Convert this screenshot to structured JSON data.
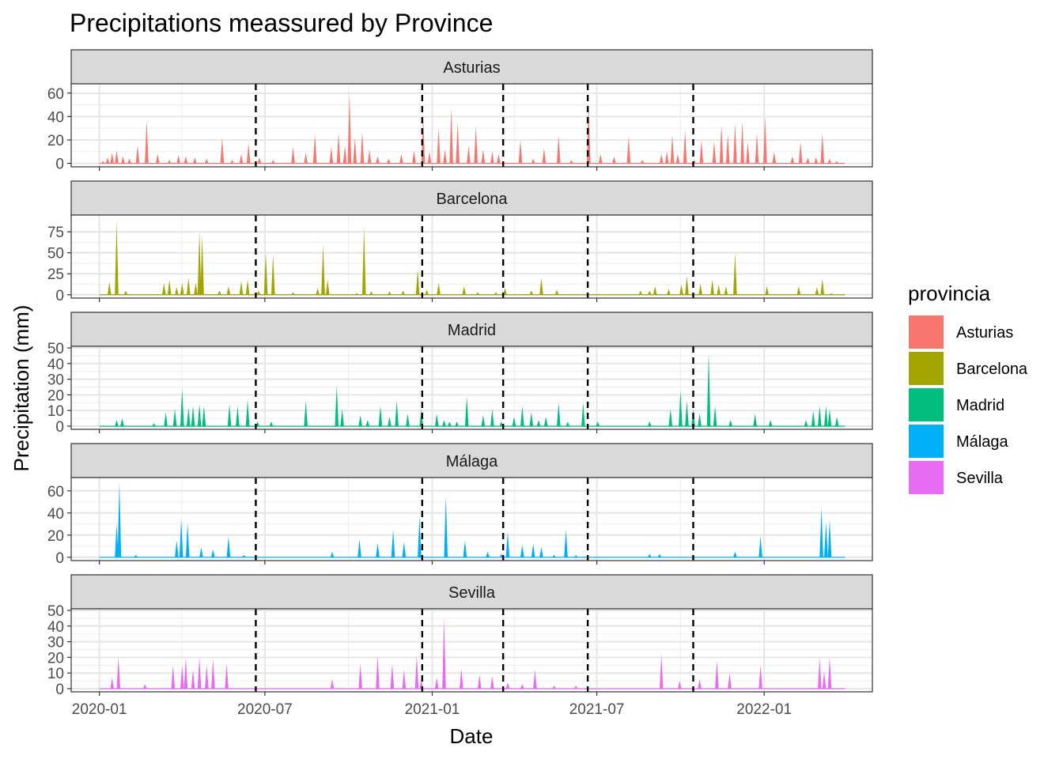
{
  "chart_data": {
    "type": "area",
    "title": "Precipitations meassured by Province",
    "xlabel": "Date",
    "ylabel": "Precipitation (mm)",
    "facet_by": "provincia",
    "x_range": [
      "2019-12-01",
      "2022-04-30"
    ],
    "x_ticks": [
      "2020-01-01",
      "2020-07-01",
      "2021-01-01",
      "2021-07-01",
      "2022-01-01"
    ],
    "x_tick_labels": [
      "2020-01",
      "2020-07",
      "2021-01",
      "2021-07",
      "2022-01"
    ],
    "vertical_lines": [
      "2020-06-21",
      "2020-12-21",
      "2021-03-20",
      "2021-06-21",
      "2021-10-15"
    ],
    "grid": true,
    "legend": {
      "title": "provincia",
      "placement": "right",
      "entries": [
        {
          "label": "Asturias",
          "color": "#F8766D"
        },
        {
          "label": "Barcelona",
          "color": "#A3A500"
        },
        {
          "label": "Madrid",
          "color": "#00BF7D"
        },
        {
          "label": "Málaga",
          "color": "#00B0F6"
        },
        {
          "label": "Sevilla",
          "color": "#E76BF3"
        }
      ]
    },
    "series": [
      {
        "name": "Asturias",
        "color": "#F8766D",
        "ylim": [
          -3,
          68
        ],
        "yticks": [
          0,
          20,
          40,
          60
        ],
        "peaks": [
          [
            "2020-01-05",
            2
          ],
          [
            "2020-01-10",
            5
          ],
          [
            "2020-01-15",
            9
          ],
          [
            "2020-01-20",
            11
          ],
          [
            "2020-01-27",
            6
          ],
          [
            "2020-02-03",
            4
          ],
          [
            "2020-02-12",
            15
          ],
          [
            "2020-02-22",
            37
          ],
          [
            "2020-03-05",
            8
          ],
          [
            "2020-03-18",
            3
          ],
          [
            "2020-03-28",
            7
          ],
          [
            "2020-04-05",
            6
          ],
          [
            "2020-04-15",
            5
          ],
          [
            "2020-04-28",
            4
          ],
          [
            "2020-05-15",
            22
          ],
          [
            "2020-05-26",
            3
          ],
          [
            "2020-06-05",
            8
          ],
          [
            "2020-06-13",
            17
          ],
          [
            "2020-06-25",
            5
          ],
          [
            "2020-07-10",
            3
          ],
          [
            "2020-08-01",
            14
          ],
          [
            "2020-08-15",
            9
          ],
          [
            "2020-08-25",
            25
          ],
          [
            "2020-09-12",
            14
          ],
          [
            "2020-09-20",
            26
          ],
          [
            "2020-09-27",
            15
          ],
          [
            "2020-10-02",
            60
          ],
          [
            "2020-10-08",
            22
          ],
          [
            "2020-10-16",
            27
          ],
          [
            "2020-10-24",
            12
          ],
          [
            "2020-11-02",
            6
          ],
          [
            "2020-11-14",
            4
          ],
          [
            "2020-11-28",
            8
          ],
          [
            "2020-12-12",
            11
          ],
          [
            "2020-12-22",
            40
          ],
          [
            "2020-12-29",
            10
          ],
          [
            "2021-01-08",
            30
          ],
          [
            "2021-01-15",
            12
          ],
          [
            "2021-01-22",
            47
          ],
          [
            "2021-01-29",
            35
          ],
          [
            "2021-02-10",
            15
          ],
          [
            "2021-02-18",
            32
          ],
          [
            "2021-02-26",
            12
          ],
          [
            "2021-03-08",
            10
          ],
          [
            "2021-03-15",
            8
          ],
          [
            "2021-04-08",
            20
          ],
          [
            "2021-04-22",
            4
          ],
          [
            "2021-05-04",
            13
          ],
          [
            "2021-05-20",
            24
          ],
          [
            "2021-06-03",
            3
          ],
          [
            "2021-06-22",
            51
          ],
          [
            "2021-07-05",
            8
          ],
          [
            "2021-07-20",
            6
          ],
          [
            "2021-08-05",
            23
          ],
          [
            "2021-08-20",
            3
          ],
          [
            "2021-09-10",
            8
          ],
          [
            "2021-09-16",
            10
          ],
          [
            "2021-09-22",
            24
          ],
          [
            "2021-09-28",
            8
          ],
          [
            "2021-10-06",
            28
          ],
          [
            "2021-10-16",
            3
          ],
          [
            "2021-10-24",
            20
          ],
          [
            "2021-11-07",
            19
          ],
          [
            "2021-11-15",
            33
          ],
          [
            "2021-11-22",
            25
          ],
          [
            "2021-11-30",
            34
          ],
          [
            "2021-12-08",
            36
          ],
          [
            "2021-12-14",
            18
          ],
          [
            "2021-12-24",
            26
          ],
          [
            "2022-01-02",
            40
          ],
          [
            "2022-01-12",
            10
          ],
          [
            "2022-02-01",
            6
          ],
          [
            "2022-02-10",
            18
          ],
          [
            "2022-02-18",
            5
          ],
          [
            "2022-02-27",
            5
          ],
          [
            "2022-03-06",
            26
          ],
          [
            "2022-03-14",
            4
          ],
          [
            "2022-03-22",
            2
          ]
        ]
      },
      {
        "name": "Barcelona",
        "color": "#A3A500",
        "ylim": [
          -4,
          95
        ],
        "yticks": [
          0,
          25,
          50,
          75
        ],
        "peaks": [
          [
            "2020-01-12",
            15
          ],
          [
            "2020-01-20",
            87
          ],
          [
            "2020-01-30",
            5
          ],
          [
            "2020-03-12",
            14
          ],
          [
            "2020-03-18",
            18
          ],
          [
            "2020-03-26",
            9
          ],
          [
            "2020-04-01",
            14
          ],
          [
            "2020-04-08",
            20
          ],
          [
            "2020-04-16",
            14
          ],
          [
            "2020-04-20",
            76
          ],
          [
            "2020-04-23",
            70
          ],
          [
            "2020-05-12",
            5
          ],
          [
            "2020-05-22",
            10
          ],
          [
            "2020-06-05",
            16
          ],
          [
            "2020-06-12",
            18
          ],
          [
            "2020-06-24",
            5
          ],
          [
            "2020-07-02",
            50
          ],
          [
            "2020-07-10",
            48
          ],
          [
            "2020-08-01",
            3
          ],
          [
            "2020-08-28",
            8
          ],
          [
            "2020-09-03",
            60
          ],
          [
            "2020-09-08",
            18
          ],
          [
            "2020-10-10",
            2
          ],
          [
            "2020-10-18",
            80
          ],
          [
            "2020-10-26",
            4
          ],
          [
            "2020-11-15",
            4
          ],
          [
            "2020-11-30",
            5
          ],
          [
            "2020-12-16",
            30
          ],
          [
            "2020-12-26",
            6
          ],
          [
            "2021-01-08",
            14
          ],
          [
            "2021-02-05",
            10
          ],
          [
            "2021-02-20",
            3
          ],
          [
            "2021-03-12",
            3
          ],
          [
            "2021-03-22",
            8
          ],
          [
            "2021-04-20",
            5
          ],
          [
            "2021-05-01",
            20
          ],
          [
            "2021-05-18",
            6
          ],
          [
            "2021-08-18",
            5
          ],
          [
            "2021-08-28",
            5
          ],
          [
            "2021-09-03",
            10
          ],
          [
            "2021-09-18",
            7
          ],
          [
            "2021-10-02",
            12
          ],
          [
            "2021-10-08",
            22
          ],
          [
            "2021-10-23",
            13
          ],
          [
            "2021-11-05",
            18
          ],
          [
            "2021-11-12",
            12
          ],
          [
            "2021-11-20",
            10
          ],
          [
            "2021-11-30",
            50
          ],
          [
            "2022-01-04",
            10
          ],
          [
            "2022-02-08",
            10
          ],
          [
            "2022-02-28",
            9
          ],
          [
            "2022-03-06",
            19
          ],
          [
            "2022-03-16",
            2
          ]
        ]
      },
      {
        "name": "Madrid",
        "color": "#00BF7D",
        "ylim": [
          -2,
          51
        ],
        "yticks": [
          0,
          10,
          20,
          30,
          40,
          50
        ],
        "peaks": [
          [
            "2020-01-20",
            4
          ],
          [
            "2020-01-26",
            5
          ],
          [
            "2020-03-01",
            2
          ],
          [
            "2020-03-14",
            9
          ],
          [
            "2020-03-24",
            11
          ],
          [
            "2020-04-01",
            24
          ],
          [
            "2020-04-08",
            12
          ],
          [
            "2020-04-13",
            13
          ],
          [
            "2020-04-20",
            14
          ],
          [
            "2020-04-25",
            13
          ],
          [
            "2020-05-23",
            14
          ],
          [
            "2020-06-01",
            13
          ],
          [
            "2020-06-12",
            17
          ],
          [
            "2020-06-23",
            3
          ],
          [
            "2020-07-08",
            3
          ],
          [
            "2020-08-15",
            16
          ],
          [
            "2020-09-18",
            26
          ],
          [
            "2020-09-24",
            11
          ],
          [
            "2020-10-14",
            7
          ],
          [
            "2020-10-22",
            4
          ],
          [
            "2020-11-05",
            13
          ],
          [
            "2020-11-15",
            6
          ],
          [
            "2020-11-23",
            16
          ],
          [
            "2020-12-05",
            8
          ],
          [
            "2020-12-20",
            11
          ],
          [
            "2021-01-06",
            8
          ],
          [
            "2021-01-14",
            4
          ],
          [
            "2021-01-20",
            3
          ],
          [
            "2021-01-28",
            3
          ],
          [
            "2021-02-08",
            19
          ],
          [
            "2021-02-26",
            7
          ],
          [
            "2021-03-08",
            11
          ],
          [
            "2021-03-18",
            3
          ],
          [
            "2021-04-01",
            6
          ],
          [
            "2021-04-10",
            13
          ],
          [
            "2021-04-20",
            9
          ],
          [
            "2021-04-28",
            4
          ],
          [
            "2021-05-06",
            6
          ],
          [
            "2021-05-20",
            15
          ],
          [
            "2021-05-30",
            3
          ],
          [
            "2021-06-16",
            15
          ],
          [
            "2021-07-02",
            3
          ],
          [
            "2021-08-28",
            3
          ],
          [
            "2021-09-20",
            11
          ],
          [
            "2021-10-01",
            23
          ],
          [
            "2021-10-08",
            16
          ],
          [
            "2021-10-15",
            11
          ],
          [
            "2021-10-22",
            8
          ],
          [
            "2021-11-01",
            47
          ],
          [
            "2021-11-08",
            13
          ],
          [
            "2021-11-25",
            4
          ],
          [
            "2021-12-22",
            8
          ],
          [
            "2022-01-08",
            4
          ],
          [
            "2022-02-16",
            4
          ],
          [
            "2022-02-24",
            10
          ],
          [
            "2022-03-03",
            13
          ],
          [
            "2022-03-10",
            13
          ],
          [
            "2022-03-14",
            11
          ],
          [
            "2022-03-22",
            6
          ]
        ]
      },
      {
        "name": "Málaga",
        "color": "#00B0F6",
        "ylim": [
          -3,
          72
        ],
        "yticks": [
          0,
          20,
          40,
          60
        ],
        "peaks": [
          [
            "2020-01-20",
            30
          ],
          [
            "2020-01-23",
            68
          ],
          [
            "2020-02-10",
            2
          ],
          [
            "2020-03-26",
            15
          ],
          [
            "2020-03-31",
            35
          ],
          [
            "2020-04-07",
            31
          ],
          [
            "2020-04-22",
            9
          ],
          [
            "2020-05-05",
            7
          ],
          [
            "2020-05-22",
            19
          ],
          [
            "2020-06-08",
            2
          ],
          [
            "2020-09-13",
            5
          ],
          [
            "2020-10-13",
            16
          ],
          [
            "2020-11-02",
            13
          ],
          [
            "2020-11-19",
            25
          ],
          [
            "2020-12-01",
            14
          ],
          [
            "2020-12-18",
            37
          ],
          [
            "2021-01-16",
            55
          ],
          [
            "2021-02-06",
            15
          ],
          [
            "2021-03-03",
            5
          ],
          [
            "2021-03-18",
            3
          ],
          [
            "2021-03-25",
            23
          ],
          [
            "2021-04-10",
            11
          ],
          [
            "2021-04-22",
            12
          ],
          [
            "2021-05-01",
            9
          ],
          [
            "2021-05-15",
            2
          ],
          [
            "2021-05-28",
            25
          ],
          [
            "2021-06-08",
            2
          ],
          [
            "2021-08-28",
            3
          ],
          [
            "2021-09-08",
            3
          ],
          [
            "2021-11-30",
            5
          ],
          [
            "2021-12-28",
            19
          ],
          [
            "2022-03-05",
            45
          ],
          [
            "2022-03-10",
            32
          ],
          [
            "2022-03-14",
            34
          ]
        ]
      },
      {
        "name": "Sevilla",
        "color": "#E76BF3",
        "ylim": [
          -2,
          51
        ],
        "yticks": [
          0,
          10,
          20,
          30,
          40,
          50
        ],
        "peaks": [
          [
            "2020-01-15",
            7
          ],
          [
            "2020-01-22",
            20
          ],
          [
            "2020-02-20",
            3
          ],
          [
            "2020-03-22",
            15
          ],
          [
            "2020-04-01",
            15
          ],
          [
            "2020-04-05",
            20
          ],
          [
            "2020-04-13",
            12
          ],
          [
            "2020-04-20",
            20
          ],
          [
            "2020-04-28",
            15
          ],
          [
            "2020-05-05",
            19
          ],
          [
            "2020-05-20",
            16
          ],
          [
            "2020-09-13",
            6
          ],
          [
            "2020-10-14",
            16
          ],
          [
            "2020-11-02",
            21
          ],
          [
            "2020-11-18",
            16
          ],
          [
            "2020-12-01",
            12
          ],
          [
            "2020-12-15",
            21
          ],
          [
            "2020-12-20",
            6
          ],
          [
            "2021-01-06",
            7
          ],
          [
            "2021-01-14",
            45
          ],
          [
            "2021-02-02",
            13
          ],
          [
            "2021-02-22",
            9
          ],
          [
            "2021-03-08",
            8
          ],
          [
            "2021-03-25",
            4
          ],
          [
            "2021-04-10",
            3
          ],
          [
            "2021-04-24",
            12
          ],
          [
            "2021-05-15",
            2
          ],
          [
            "2021-06-08",
            2
          ],
          [
            "2021-09-10",
            22
          ],
          [
            "2021-09-30",
            5
          ],
          [
            "2021-10-22",
            6
          ],
          [
            "2021-11-10",
            18
          ],
          [
            "2021-11-24",
            10
          ],
          [
            "2021-12-28",
            15
          ],
          [
            "2022-03-03",
            20
          ],
          [
            "2022-03-08",
            11
          ],
          [
            "2022-03-14",
            20
          ]
        ]
      }
    ]
  }
}
